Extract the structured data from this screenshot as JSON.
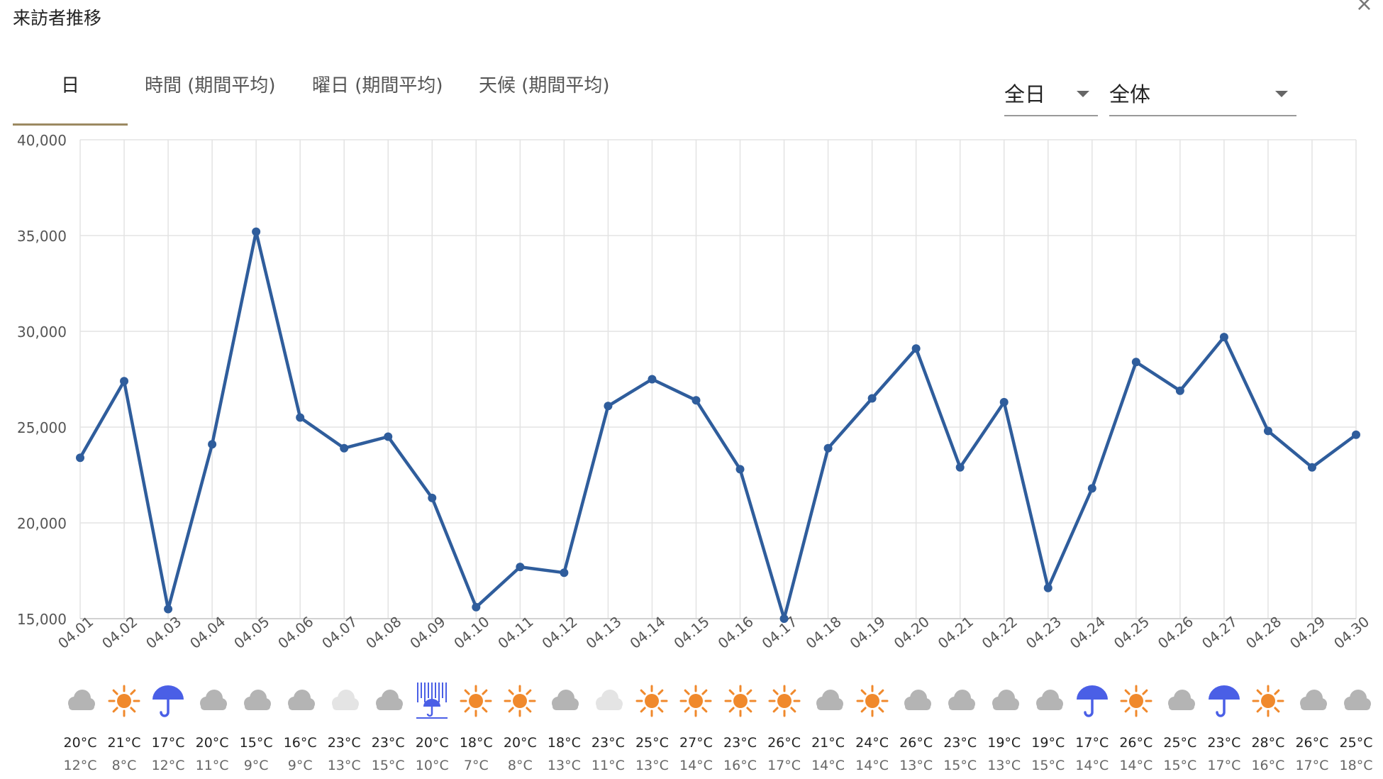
{
  "header": {
    "title": "来訪者推移",
    "close_label": "×"
  },
  "tabs": [
    {
      "label": "日",
      "active": true
    },
    {
      "label": "時間 (期間平均)",
      "active": false
    },
    {
      "label": "曜日 (期間平均)",
      "active": false
    },
    {
      "label": "天候 (期間平均)",
      "active": false
    }
  ],
  "filters": {
    "period": "全日",
    "segment": "全体"
  },
  "colors": {
    "line": "#2f5d9c",
    "grid": "#e3e3e3",
    "sun": "#f0892c",
    "rain": "#4a5fe6",
    "cloud": "#b4b4b4",
    "cloud_light": "#e4e4e4",
    "tab_underline": "#9c8a62"
  },
  "chart_data": {
    "type": "line",
    "categories": [
      "04.01",
      "04.02",
      "04.03",
      "04.04",
      "04.05",
      "04.06",
      "04.07",
      "04.08",
      "04.09",
      "04.10",
      "04.11",
      "04.12",
      "04.13",
      "04.14",
      "04.15",
      "04.16",
      "04.17",
      "04.18",
      "04.19",
      "04.20",
      "04.21",
      "04.22",
      "04.23",
      "04.24",
      "04.25",
      "04.26",
      "04.27",
      "04.28",
      "04.29",
      "04.30"
    ],
    "series": [
      {
        "values": [
          23400,
          27400,
          15500,
          24100,
          35200,
          25500,
          23900,
          24500,
          21300,
          15600,
          17700,
          17400,
          26100,
          27500,
          26400,
          22800,
          15000,
          23900,
          26500,
          29100,
          22900,
          26300,
          16600,
          21800,
          28400,
          26900,
          29700,
          24800,
          22900,
          24600
        ]
      }
    ],
    "ylim": [
      15000,
      40000
    ],
    "yticks": [
      "15,000",
      "20,000",
      "25,000",
      "30,000",
      "35,000",
      "40,000"
    ],
    "grid": true,
    "legend": "none"
  },
  "weather": [
    {
      "icon": "cloud-icon",
      "high": "20°C",
      "low": "12°C"
    },
    {
      "icon": "sun-icon",
      "high": "21°C",
      "low": "8°C"
    },
    {
      "icon": "umbrella-icon",
      "high": "17°C",
      "low": "12°C"
    },
    {
      "icon": "cloud-icon",
      "high": "20°C",
      "low": "11°C"
    },
    {
      "icon": "cloud-icon",
      "high": "15°C",
      "low": "9°C"
    },
    {
      "icon": "cloud-icon",
      "high": "16°C",
      "low": "9°C"
    },
    {
      "icon": "light-cloud-icon",
      "high": "23°C",
      "low": "13°C"
    },
    {
      "icon": "cloud-icon",
      "high": "23°C",
      "low": "15°C"
    },
    {
      "icon": "heavy-rain-icon",
      "high": "20°C",
      "low": "10°C"
    },
    {
      "icon": "sun-icon",
      "high": "18°C",
      "low": "7°C"
    },
    {
      "icon": "sun-icon",
      "high": "20°C",
      "low": "8°C"
    },
    {
      "icon": "cloud-icon",
      "high": "18°C",
      "low": "13°C"
    },
    {
      "icon": "light-cloud-icon",
      "high": "23°C",
      "low": "11°C"
    },
    {
      "icon": "sun-icon",
      "high": "25°C",
      "low": "13°C"
    },
    {
      "icon": "sun-icon",
      "high": "27°C",
      "low": "14°C"
    },
    {
      "icon": "sun-icon",
      "high": "23°C",
      "low": "16°C"
    },
    {
      "icon": "sun-icon",
      "high": "26°C",
      "low": "17°C"
    },
    {
      "icon": "cloud-icon",
      "high": "21°C",
      "low": "14°C"
    },
    {
      "icon": "sun-icon",
      "high": "24°C",
      "low": "14°C"
    },
    {
      "icon": "cloud-icon",
      "high": "26°C",
      "low": "13°C"
    },
    {
      "icon": "cloud-icon",
      "high": "23°C",
      "low": "15°C"
    },
    {
      "icon": "cloud-icon",
      "high": "19°C",
      "low": "13°C"
    },
    {
      "icon": "cloud-icon",
      "high": "19°C",
      "low": "15°C"
    },
    {
      "icon": "umbrella-icon",
      "high": "17°C",
      "low": "14°C"
    },
    {
      "icon": "sun-icon",
      "high": "26°C",
      "low": "14°C"
    },
    {
      "icon": "cloud-icon",
      "high": "25°C",
      "low": "15°C"
    },
    {
      "icon": "umbrella-icon",
      "high": "23°C",
      "low": "17°C"
    },
    {
      "icon": "sun-icon",
      "high": "28°C",
      "low": "16°C"
    },
    {
      "icon": "cloud-icon",
      "high": "26°C",
      "low": "17°C"
    },
    {
      "icon": "cloud-icon",
      "high": "25°C",
      "low": "18°C"
    }
  ]
}
